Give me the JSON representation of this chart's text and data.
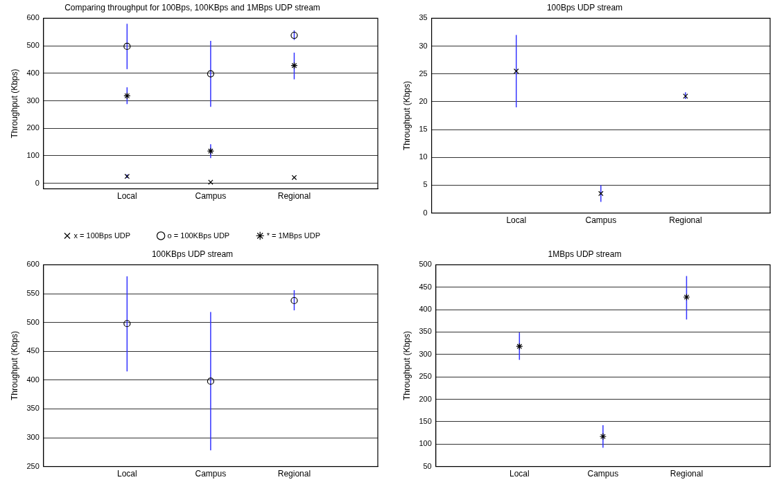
{
  "chart_data": [
    {
      "type": "scatter",
      "title": "Comparing throughput for 100Bps, 100KBps and 1MBps UDP stream",
      "ylabel": "Throughput (Kbps)",
      "categories": [
        null,
        "Local",
        "Campus",
        "Regional",
        null
      ],
      "ylim": [
        -20,
        600
      ],
      "yticks": [
        0,
        100,
        200,
        300,
        400,
        500,
        600
      ],
      "grid": "y",
      "legend": "bottom",
      "series": [
        {
          "name": "x = 100Bps UDP",
          "color": "#000000",
          "marker": "cross",
          "values": [
            null,
            25,
            4,
            21,
            null
          ],
          "errors": [
            null,
            [
              19,
              32
            ],
            [
              2,
              5
            ],
            [
              20.5,
              21.7
            ],
            null
          ]
        },
        {
          "name": "o = 100KBps UDP",
          "color": "#000000",
          "marker": "circle",
          "values": [
            null,
            498,
            398,
            538,
            null
          ],
          "errors": [
            null,
            [
              415,
              580
            ],
            [
              278,
              518
            ],
            [
              521,
              556
            ],
            null
          ]
        },
        {
          "name": "* = 1MBps UDP",
          "color": "#000000",
          "values": [
            null,
            318,
            117,
            428,
            null
          ],
          "errors": [
            null,
            [
              288,
              349
            ],
            [
              92,
              142
            ],
            [
              378,
              475
            ],
            null
          ]
        }
      ]
    },
    {
      "type": "scatter",
      "title": "100Bps UDP stream",
      "ylabel": "Throughput (Kbps)",
      "categories": [
        null,
        "Local",
        "Campus",
        "Regional",
        null
      ],
      "ylim": [
        0,
        35
      ],
      "yticks": [
        0,
        5,
        10,
        15,
        20,
        25,
        30,
        35
      ],
      "grid": "y",
      "series": [
        {
          "color": "#000000",
          "marker": "cross",
          "values": [
            null,
            25.5,
            3.5,
            21,
            null
          ],
          "errors": [
            null,
            [
              19,
              32
            ],
            [
              2,
              5
            ],
            [
              20.5,
              21.7
            ],
            null
          ]
        }
      ]
    },
    {
      "type": "scatter",
      "title": "100KBps UDP stream",
      "ylabel": "Throughput (Kbps)",
      "categories": [
        null,
        "Local",
        "Campus",
        "Regional",
        null
      ],
      "ylim": [
        250,
        600
      ],
      "yticks": [
        250,
        300,
        350,
        400,
        450,
        500,
        550,
        600
      ],
      "grid": "y",
      "series": [
        {
          "color": "#000000",
          "marker": "circle",
          "values": [
            null,
            498,
            398,
            538,
            null
          ],
          "errors": [
            null,
            [
              415,
              580
            ],
            [
              278,
              518
            ],
            [
              521,
              556
            ],
            null
          ]
        }
      ]
    },
    {
      "type": "scatter",
      "title": "1MBps UDP stream",
      "ylabel": "Throughput (Kbps)",
      "categories": [
        null,
        "Local",
        "Campus",
        "Regional",
        null
      ],
      "ylim": [
        50,
        500
      ],
      "yticks": [
        50,
        100,
        150,
        200,
        250,
        300,
        350,
        400,
        450,
        500
      ],
      "grid": "y",
      "series": [
        {
          "color": "#000000",
          "values": [
            null,
            318,
            117,
            428,
            null
          ],
          "errors": [
            null,
            [
              288,
              349
            ],
            [
              92,
              142
            ],
            [
              378,
              475
            ],
            null
          ]
        }
      ]
    }
  ]
}
